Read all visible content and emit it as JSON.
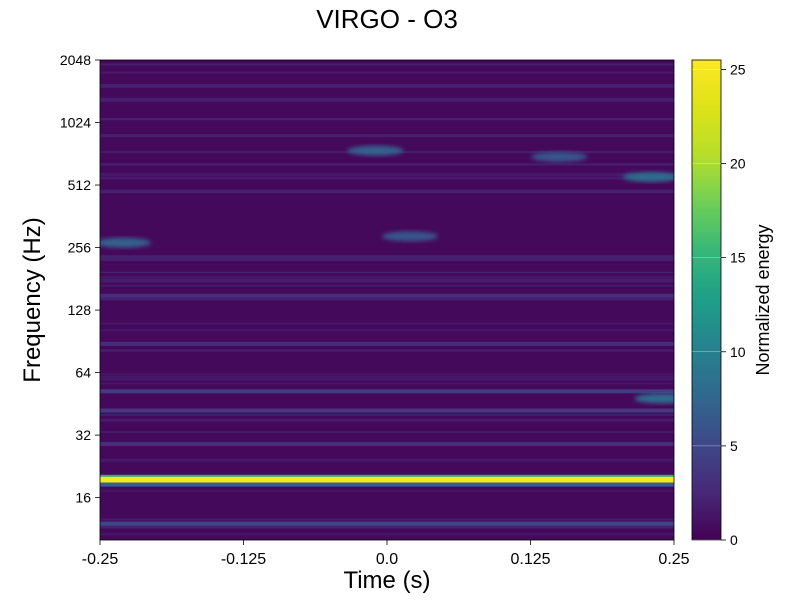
{
  "chart_data": {
    "type": "heatmap",
    "title": "VIRGO - O3",
    "xlabel": "Time (s)",
    "ylabel": "Frequency (Hz)",
    "xlim": [
      -0.25,
      0.25
    ],
    "ylim": [
      10,
      2048
    ],
    "y_scale": "log2",
    "x_ticks": [
      "-0.25",
      "-0.125",
      "0.0",
      "0.125",
      "0.25"
    ],
    "x_tick_values": [
      -0.25,
      -0.125,
      0.0,
      0.125,
      0.25
    ],
    "y_ticks": [
      "16",
      "32",
      "64",
      "128",
      "256",
      "512",
      "1024",
      "2048"
    ],
    "y_tick_values": [
      16,
      32,
      64,
      128,
      256,
      512,
      1024,
      2048
    ],
    "colormap": "viridis",
    "colorbar": {
      "label": "Normalized energy",
      "range": [
        0,
        25.5
      ],
      "ticks": [
        "0",
        "5",
        "10",
        "15",
        "20",
        "25"
      ],
      "tick_values": [
        0,
        5,
        10,
        15,
        20,
        25
      ]
    },
    "features": [
      {
        "kind": "line",
        "frequency_hz": 19.5,
        "energy": 25
      },
      {
        "kind": "line",
        "frequency_hz": 18.5,
        "energy": 7
      },
      {
        "kind": "line",
        "frequency_hz": 12,
        "energy": 5
      },
      {
        "kind": "line",
        "frequency_hz": 29,
        "energy": 3
      },
      {
        "kind": "line",
        "frequency_hz": 42,
        "energy": 4
      },
      {
        "kind": "line",
        "frequency_hz": 52,
        "energy": 4
      },
      {
        "kind": "line",
        "frequency_hz": 88,
        "energy": 3
      },
      {
        "kind": "line",
        "frequency_hz": 150,
        "energy": 3
      },
      {
        "kind": "line",
        "frequency_hz": 230,
        "energy": 2
      },
      {
        "kind": "blob",
        "time_s": 0.24,
        "frequency_hz": 48,
        "energy": 8
      },
      {
        "kind": "blob",
        "time_s": -0.23,
        "frequency_hz": 270,
        "energy": 7
      },
      {
        "kind": "blob",
        "time_s": 0.23,
        "frequency_hz": 560,
        "energy": 8
      },
      {
        "kind": "blob",
        "time_s": -0.01,
        "frequency_hz": 750,
        "energy": 7
      },
      {
        "kind": "blob",
        "time_s": 0.02,
        "frequency_hz": 290,
        "energy": 6
      },
      {
        "kind": "blob",
        "time_s": 0.15,
        "frequency_hz": 700,
        "energy": 6
      }
    ]
  }
}
